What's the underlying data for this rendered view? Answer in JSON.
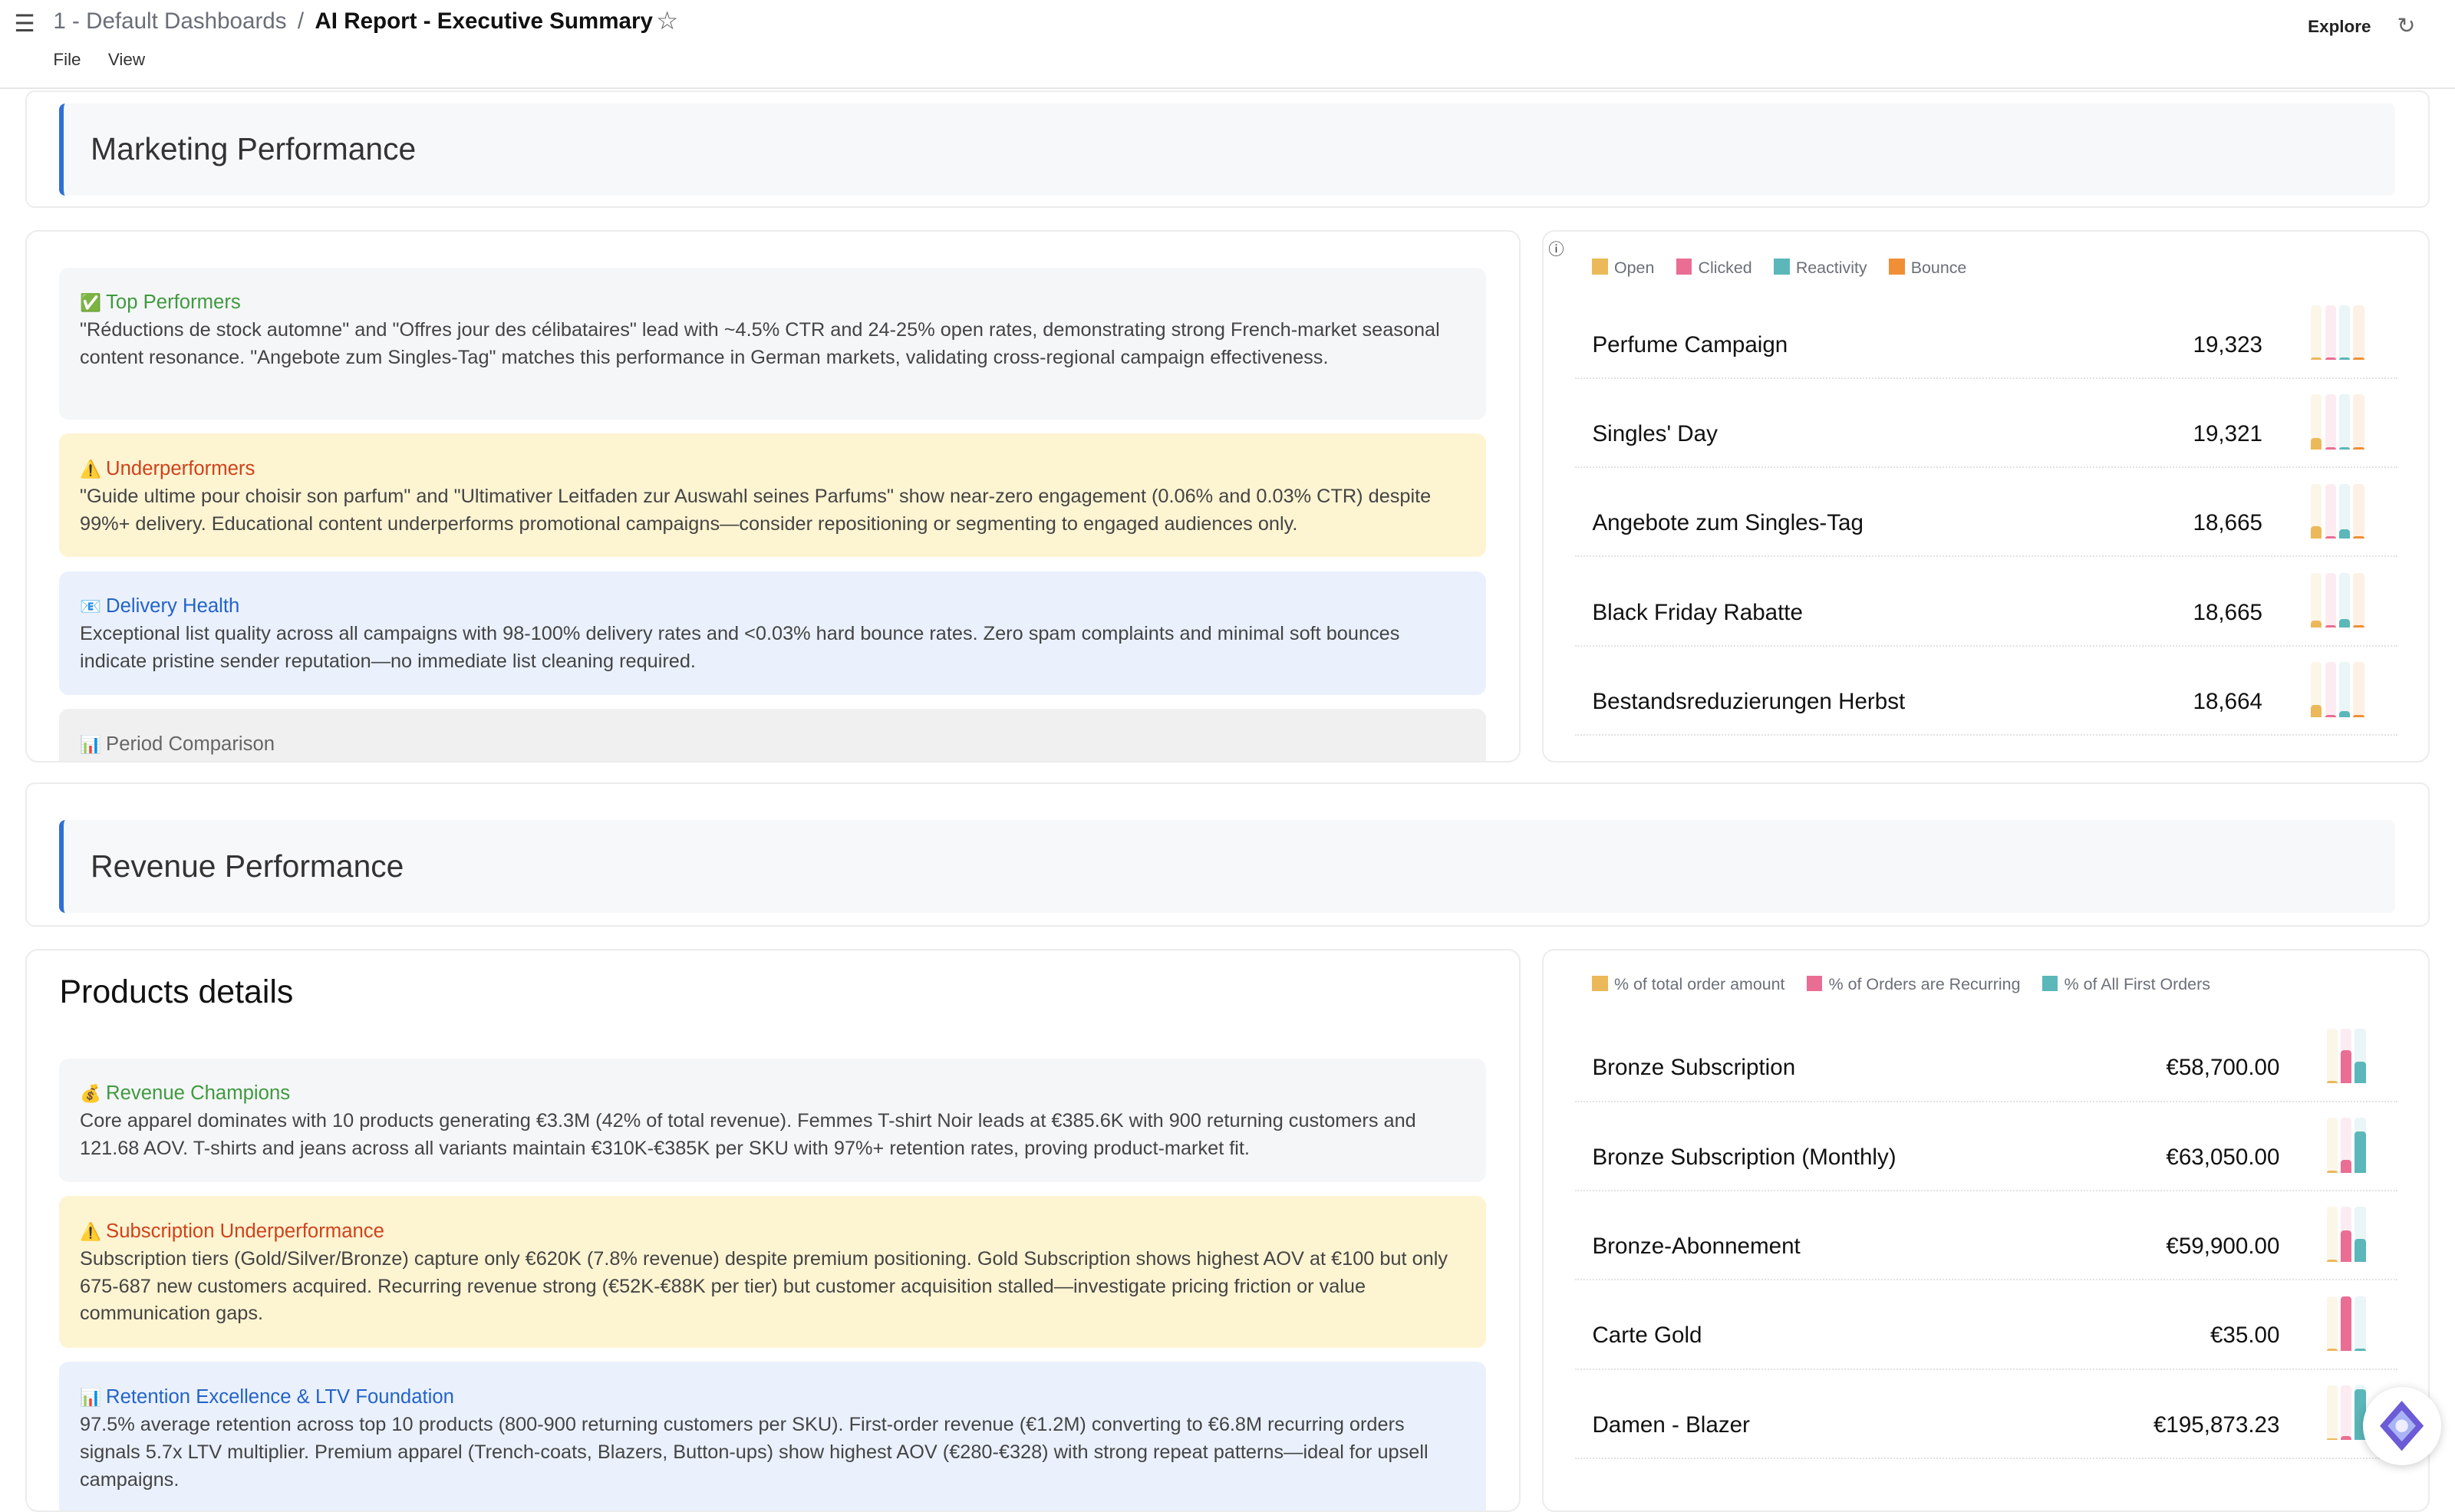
{
  "header": {
    "breadcrumb_parent": "1 - Default Dashboards",
    "separator": "/",
    "title": "AI Report - Executive Summary",
    "menu": [
      "File",
      "View"
    ],
    "explore": "Explore"
  },
  "colors": {
    "open": "#ebb95a",
    "clicked": "#ea6e93",
    "reactivity": "#5bb7b9",
    "bounce": "#f08f36",
    "accent": "#2f6fd6"
  },
  "marketing": {
    "title": "Marketing Performance",
    "insights": [
      {
        "icon": "✅",
        "title": "Top Performers",
        "color": "#3f9a3f",
        "bg": "#f5f6f8",
        "text": "\"Réductions de stock automne\" and \"Offres jour des célibataires\" lead with ~4.5% CTR and 24-25% open rates, demonstrating strong French-market seasonal content resonance. \"Angebote zum Singles-Tag\" matches this performance in German markets, validating cross-regional campaign effectiveness."
      },
      {
        "icon": "⚠️",
        "title": "Underperformers",
        "color": "#d0421b",
        "bg": "#fdf4d2",
        "text": "\"Guide ultime pour choisir son parfum\" and \"Ultimativer Leitfaden zur Auswahl seines Parfums\" show near-zero engagement (0.06% and 0.03% CTR) despite 99%+ delivery. Educational content underperforms promotional campaigns—consider repositioning or segmenting to engaged audiences only."
      },
      {
        "icon": "📧",
        "title": "Delivery Health",
        "color": "#2463c9",
        "bg": "#eaf1fd",
        "text": "Exceptional list quality across all campaigns with 98-100% delivery rates and <0.03% hard bounce rates. Zero spam complaints and minimal soft bounces indicate pristine sender reputation—no immediate list cleaning required."
      },
      {
        "icon": "📊",
        "title": "Period Comparison",
        "color": "#666666",
        "bg": "#f0f0f0",
        "text": ""
      }
    ],
    "legend": [
      "Open",
      "Clicked",
      "Reactivity",
      "Bounce"
    ],
    "rows": [
      {
        "name": "Perfume Campaign",
        "value": "19,323",
        "bars": [
          0.02,
          0.02,
          0.04,
          0.02
        ]
      },
      {
        "name": "Singles' Day",
        "value": "19,321",
        "bars": [
          0.2,
          0.02,
          0.02,
          0.02
        ]
      },
      {
        "name": "Angebote zum Singles-Tag",
        "value": "18,665",
        "bars": [
          0.23,
          0.04,
          0.17,
          0.01
        ]
      },
      {
        "name": "Black Friday Rabatte",
        "value": "18,665",
        "bars": [
          0.13,
          0.03,
          0.16,
          0.03
        ]
      },
      {
        "name": "Bestandsreduzierungen Herbst",
        "value": "18,664",
        "bars": [
          0.22,
          0.03,
          0.1,
          0.03
        ]
      }
    ]
  },
  "revenue": {
    "title": "Revenue Performance",
    "card_title": "Products details",
    "insights": [
      {
        "icon": "💰",
        "title": "Revenue Champions",
        "color": "#3f9a3f",
        "bg": "#f5f6f8",
        "text": "Core apparel dominates with 10 products generating €3.3M (42% of total revenue). Femmes T-shirt Noir leads at €385.6K with 900 returning customers and 121.68 AOV. T-shirts and jeans across all variants maintain €310K-€385K per SKU with 97%+ retention rates, proving product-market fit."
      },
      {
        "icon": "⚠️",
        "title": "Subscription Underperformance",
        "color": "#d0421b",
        "bg": "#fdf4d2",
        "text": "Subscription tiers (Gold/Silver/Bronze) capture only €620K (7.8% revenue) despite premium positioning. Gold Subscription shows highest AOV at €100 but only 675-687 new customers acquired. Recurring revenue strong (€52K-€88K per tier) but customer acquisition stalled—investigate pricing friction or value communication gaps."
      },
      {
        "icon": "📊",
        "title": "Retention Excellence & LTV Foundation",
        "color": "#2463c9",
        "bg": "#eaf1fd",
        "text": "97.5% average retention across top 10 products (800-900 returning customers per SKU). First-order revenue (€1.2M) converting to €6.8M recurring orders signals 5.7x LTV multiplier. Premium apparel (Trench-coats, Blazers, Button-ups) show highest AOV (€280-€328) with strong repeat patterns—ideal for upsell campaigns."
      }
    ],
    "legend": [
      "% of total order amount",
      "% of Orders are Recurring",
      "% of All First Orders"
    ],
    "rows": [
      {
        "name": "Bronze Subscription",
        "value": "€58,700.00",
        "bars": [
          0.02,
          0.6,
          0.4
        ]
      },
      {
        "name": "Bronze Subscription (Monthly)",
        "value": "€63,050.00",
        "bars": [
          0.02,
          0.23,
          0.75
        ]
      },
      {
        "name": "Bronze-Abonnement",
        "value": "€59,900.00",
        "bars": [
          0.02,
          0.57,
          0.42
        ]
      },
      {
        "name": "Carte Gold",
        "value": "€35.00",
        "bars": [
          0.02,
          1.0,
          0.02
        ]
      },
      {
        "name": "Damen - Blazer",
        "value": "€195,873.23",
        "bars": [
          0.02,
          0.08,
          0.93
        ]
      }
    ]
  }
}
